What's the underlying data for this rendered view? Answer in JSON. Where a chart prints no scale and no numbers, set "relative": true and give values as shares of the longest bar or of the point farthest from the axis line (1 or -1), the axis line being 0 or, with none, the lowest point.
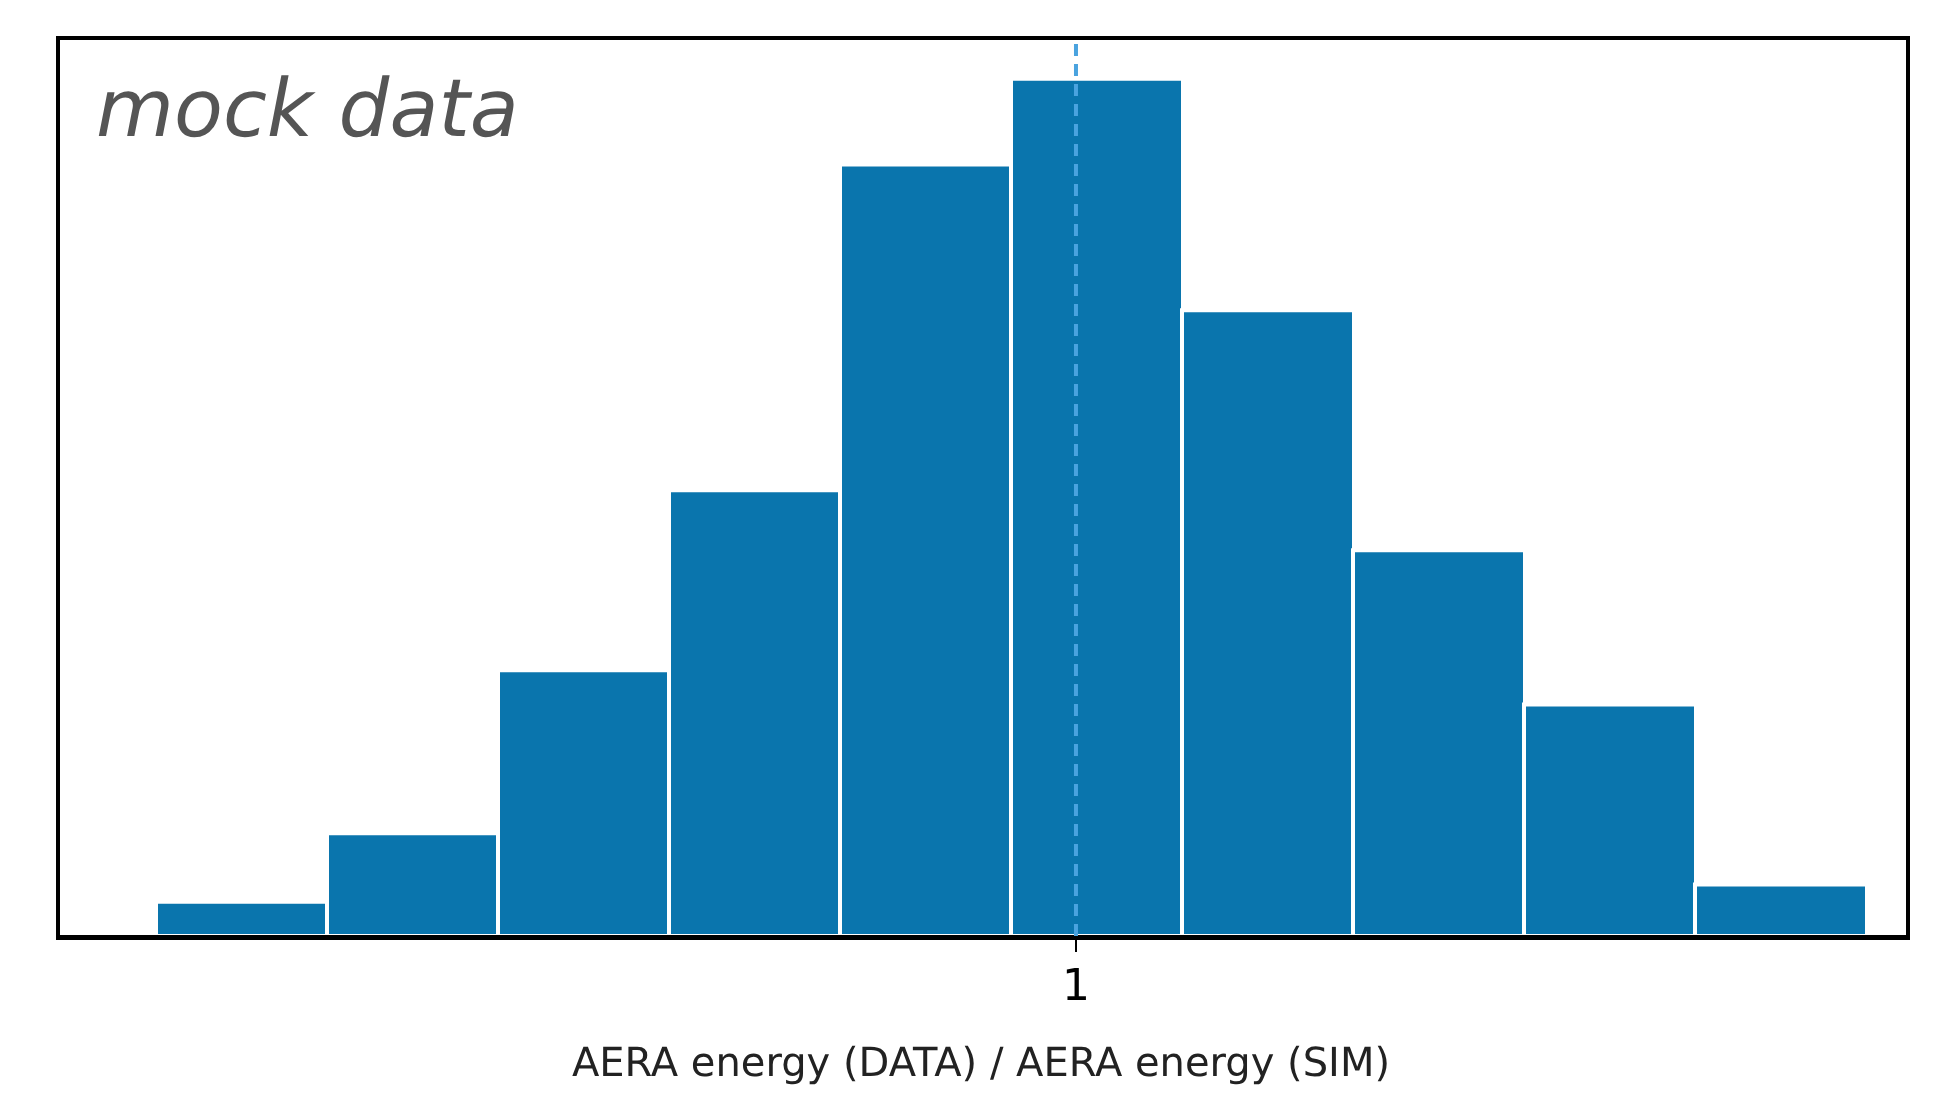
{
  "chart_data": {
    "type": "bar",
    "xlabel": "AERA energy (DATA) / AERA energy (SIM)",
    "annotations": [
      "mock data",
      "1"
    ],
    "categories": [
      null,
      null,
      null,
      null,
      null,
      null,
      null,
      null,
      null,
      null
    ],
    "values": [
      0.04,
      0.12,
      0.31,
      0.52,
      0.9,
      1,
      0.73,
      0.45,
      0.27,
      0.06
    ],
    "relative": true,
    "color": "#0a75ad"
  }
}
